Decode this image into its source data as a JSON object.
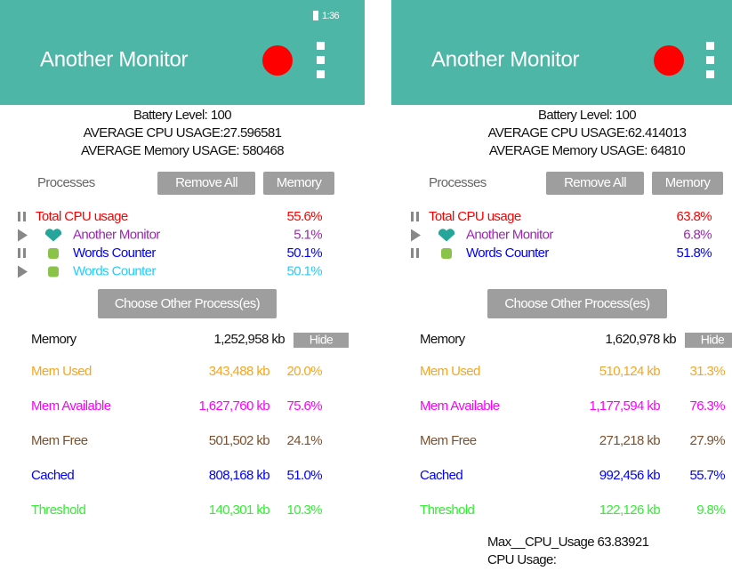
{
  "screens": [
    {
      "status_time": "1:36",
      "app_title": "Another Monitor",
      "info": [
        "Battery Level: 100",
        "AVERAGE CPU USAGE:27.596581",
        "AVERAGE Memory USAGE: 580468"
      ],
      "processes_label": "Processes",
      "remove_all": "Remove All",
      "memory_button": "Memory",
      "processes": [
        {
          "name": "Total CPU usage",
          "value": "55.6%",
          "color": "#ff0000"
        },
        {
          "name": "Another Monitor",
          "value": "5.1%",
          "color": "#9c27b0"
        },
        {
          "name": "Words Counter",
          "value": "50.1%",
          "color": "#0000ff"
        },
        {
          "name": "Words Counter",
          "value": "50.1%",
          "color": "#22ccff"
        }
      ],
      "choose_button": "Choose Other Process(es)",
      "memory": {
        "label": "Memory",
        "total": "1,252,958 kb",
        "hide": "Hide"
      },
      "rows": [
        {
          "name": "Mem Used",
          "kb": "343,488 kb",
          "pct": "20.0%",
          "color": "#f5a623"
        },
        {
          "name": "Mem Available",
          "kb": "1,627,760 kb",
          "pct": "75.6%",
          "color": "#ff00ff"
        },
        {
          "name": "Mem Free",
          "kb": "501,502 kb",
          "pct": "24.1%",
          "color": "#7a5230"
        },
        {
          "name": "Cached",
          "kb": "808,168 kb",
          "pct": "51.0%",
          "color": "#0000ff"
        },
        {
          "name": "Threshold",
          "kb": "140,301 kb",
          "pct": "10.3%",
          "color": "#33ee33"
        }
      ],
      "footer": []
    },
    {
      "app_title": "Another Monitor",
      "info": [
        "Battery Level: 100",
        "AVERAGE CPU USAGE:62.414013",
        "AVERAGE Memory USAGE: 64810"
      ],
      "processes_label": "Processes",
      "remove_all": "Remove All",
      "memory_button": "Memory",
      "processes": [
        {
          "name": "Total CPU usage",
          "value": "63.8%",
          "color": "#ff0000"
        },
        {
          "name": "Another Monitor",
          "value": "6.8%",
          "color": "#9c27b0"
        },
        {
          "name": "Words Counter",
          "value": "51.8%",
          "color": "#0000ff"
        }
      ],
      "choose_button": "Choose Other Process(es)",
      "memory": {
        "label": "Memory",
        "total": "1,620,978 kb",
        "hide": "Hide"
      },
      "rows": [
        {
          "name": "Mem Used",
          "kb": "510,124 kb",
          "pct": "31.3%",
          "color": "#f5a623"
        },
        {
          "name": "Mem Available",
          "kb": "1,177,594 kb",
          "pct": "76.3%",
          "color": "#ff00ff"
        },
        {
          "name": "Mem Free",
          "kb": "271,218 kb",
          "pct": "27.9%",
          "color": "#7a5230"
        },
        {
          "name": "Cached",
          "kb": "992,456 kb",
          "pct": "55.7%",
          "color": "#0000ff"
        },
        {
          "name": "Threshold",
          "kb": "122,126 kb",
          "pct": "9.8%",
          "color": "#33ee33"
        }
      ],
      "footer": [
        "Max__CPU_Usage 63.83921",
        "CPU Usage:"
      ]
    }
  ]
}
